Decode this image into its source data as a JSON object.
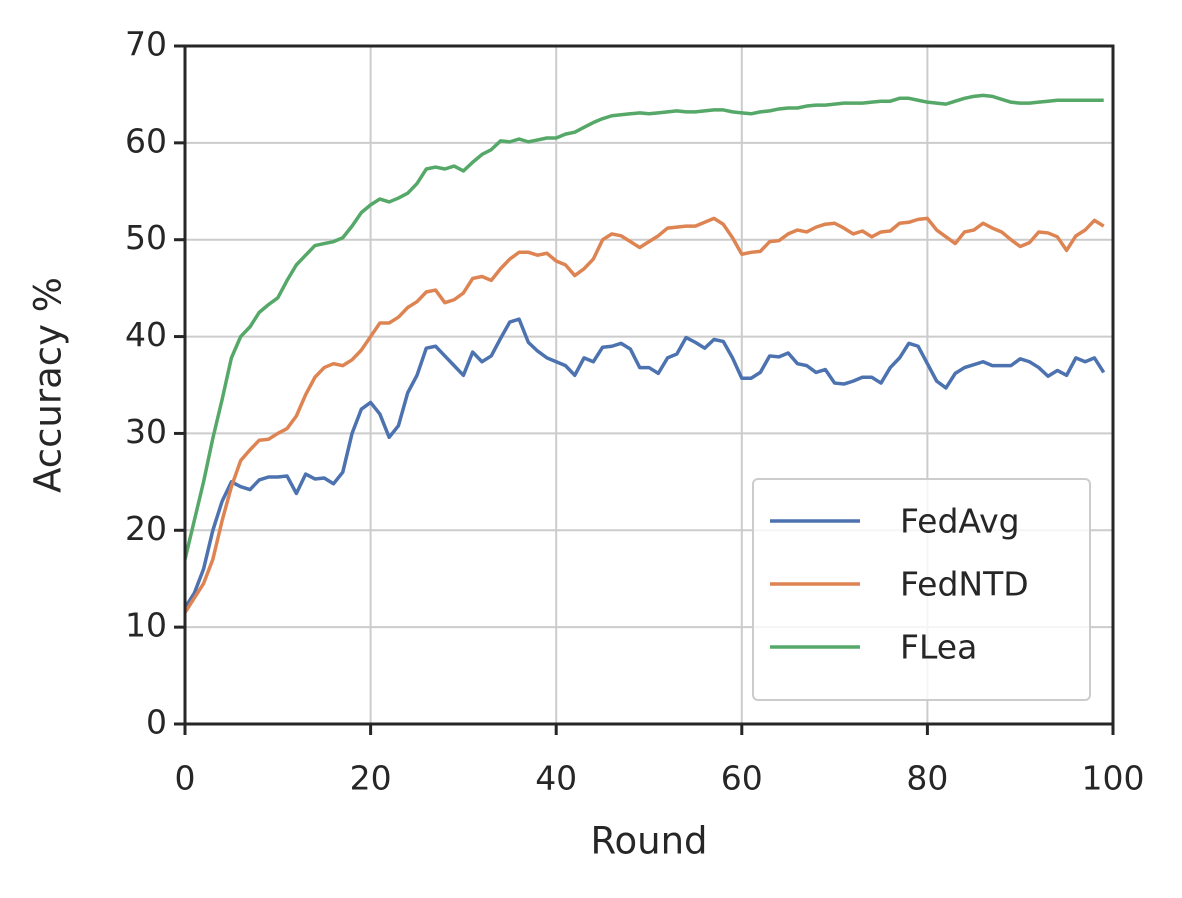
{
  "chart_data": {
    "type": "line",
    "x_label": "Round",
    "y_label": "Accuracy %",
    "x": [
      0,
      1,
      2,
      3,
      4,
      5,
      6,
      7,
      8,
      9,
      10,
      11,
      12,
      13,
      14,
      15,
      16,
      17,
      18,
      19,
      20,
      21,
      22,
      23,
      24,
      25,
      26,
      27,
      28,
      29,
      30,
      31,
      32,
      33,
      34,
      35,
      36,
      37,
      38,
      39,
      40,
      41,
      42,
      43,
      44,
      45,
      46,
      47,
      48,
      49,
      50,
      51,
      52,
      53,
      54,
      55,
      56,
      57,
      58,
      59,
      60,
      61,
      62,
      63,
      64,
      65,
      66,
      67,
      68,
      69,
      70,
      71,
      72,
      73,
      74,
      75,
      76,
      77,
      78,
      79,
      80,
      81,
      82,
      83,
      84,
      85,
      86,
      87,
      88,
      89,
      90,
      91,
      92,
      93,
      94,
      95,
      96,
      97,
      98,
      99
    ],
    "series": [
      {
        "name": "FedAvg",
        "color": "#4c72b0",
        "values": [
          12,
          13.5,
          16,
          20,
          23,
          25,
          24.5,
          24.2,
          25.2,
          25.5,
          25.5,
          25.6,
          23.8,
          25.8,
          25.3,
          25.4,
          24.8,
          26,
          30,
          32.5,
          33.2,
          32,
          29.6,
          30.8,
          34.2,
          36,
          38.8,
          39,
          38,
          37,
          36,
          38.4,
          37.4,
          38,
          39.8,
          41.5,
          41.8,
          39.4,
          38.5,
          37.8,
          37.4,
          37,
          36,
          37.8,
          37.4,
          38.9,
          39,
          39.3,
          38.7,
          36.8,
          36.8,
          36.2,
          37.8,
          38.2,
          39.9,
          39.4,
          38.8,
          39.7,
          39.5,
          37.8,
          35.7,
          35.7,
          36.3,
          38,
          37.9,
          38.3,
          37.2,
          37,
          36.3,
          36.6,
          35.2,
          35.1,
          35.4,
          35.8,
          35.8,
          35.2,
          36.8,
          37.8,
          39.3,
          39,
          37.2,
          35.4,
          34.7,
          36.2,
          36.8,
          37.1,
          37.4,
          37,
          37,
          37,
          37.7,
          37.4,
          36.8,
          35.9,
          36.5,
          36,
          37.8,
          37.4,
          37.8,
          36.3
        ]
      },
      {
        "name": "FedNTD",
        "color": "#dd8452",
        "values": [
          11.5,
          13,
          14.5,
          17,
          21,
          24.5,
          27.2,
          28.3,
          29.3,
          29.4,
          30,
          30.5,
          31.8,
          34,
          35.8,
          36.8,
          37.2,
          37,
          37.6,
          38.6,
          40,
          41.4,
          41.4,
          42,
          43,
          43.6,
          44.6,
          44.8,
          43.5,
          43.8,
          44.5,
          46,
          46.2,
          45.8,
          47,
          48,
          48.7,
          48.7,
          48.4,
          48.6,
          47.8,
          47.4,
          46.3,
          47,
          48,
          50,
          50.6,
          50.4,
          49.8,
          49.2,
          49.8,
          50.4,
          51.2,
          51.3,
          51.4,
          51.4,
          51.8,
          52.2,
          51.6,
          50.2,
          48.5,
          48.7,
          48.8,
          49.8,
          49.9,
          50.6,
          51,
          50.8,
          51.3,
          51.6,
          51.7,
          51.2,
          50.6,
          50.9,
          50.3,
          50.8,
          50.9,
          51.7,
          51.8,
          52.1,
          52.2,
          51,
          50.3,
          49.6,
          50.8,
          51,
          51.7,
          51.2,
          50.8,
          50,
          49.3,
          49.7,
          50.8,
          50.7,
          50.3,
          48.9,
          50.4,
          51,
          52,
          51.4
        ]
      },
      {
        "name": "FLea",
        "color": "#55a868",
        "values": [
          17,
          21,
          25,
          29.5,
          33.5,
          37.8,
          40,
          41,
          42.5,
          43.3,
          44,
          45.8,
          47.4,
          48.4,
          49.4,
          49.6,
          49.8,
          50.2,
          51.4,
          52.8,
          53.6,
          54.2,
          53.9,
          54.3,
          54.8,
          55.8,
          57.3,
          57.5,
          57.3,
          57.6,
          57.1,
          58,
          58.8,
          59.3,
          60.2,
          60.1,
          60.4,
          60.1,
          60.3,
          60.5,
          60.5,
          60.9,
          61.1,
          61.6,
          62.1,
          62.5,
          62.8,
          62.9,
          63,
          63.1,
          63,
          63.1,
          63.2,
          63.3,
          63.2,
          63.2,
          63.3,
          63.4,
          63.4,
          63.2,
          63.1,
          63,
          63.2,
          63.3,
          63.5,
          63.6,
          63.6,
          63.8,
          63.9,
          63.9,
          64,
          64.1,
          64.1,
          64.1,
          64.2,
          64.3,
          64.3,
          64.6,
          64.6,
          64.4,
          64.2,
          64.1,
          64,
          64.3,
          64.6,
          64.8,
          64.9,
          64.8,
          64.5,
          64.2,
          64.1,
          64.1,
          64.2,
          64.3,
          64.4,
          64.4,
          64.4,
          64.4,
          64.4,
          64.4
        ]
      }
    ],
    "xlim": [
      0,
      100
    ],
    "xticks": [
      0,
      20,
      40,
      60,
      80,
      100
    ],
    "ylim": [
      0,
      70
    ],
    "yticks": [
      0,
      10,
      20,
      30,
      40,
      50,
      60,
      70
    ],
    "grid": true,
    "legend": "lower right"
  }
}
